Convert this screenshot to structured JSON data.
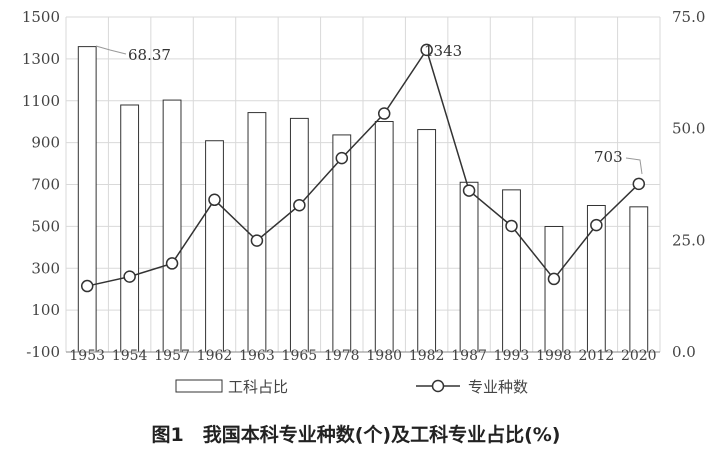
{
  "chart_data": {
    "type": "bar+line",
    "title": "图1　我国本科专业种数(个)及工科专业占比(%)",
    "categories": [
      "1953",
      "1954",
      "1957",
      "1962",
      "1963",
      "1965",
      "1978",
      "1980",
      "1982",
      "1987",
      "1993",
      "1998",
      "2012",
      "2020"
    ],
    "series": [
      {
        "name": "工科占比",
        "type": "bar",
        "axis": "right",
        "values": [
          68.37,
          55.3,
          56.4,
          47.3,
          53.6,
          52.3,
          48.6,
          51.6,
          49.8,
          38.0,
          36.3,
          28.1,
          32.8,
          32.5
        ]
      },
      {
        "name": "专业种数",
        "type": "line",
        "axis": "left",
        "values": [
          215,
          260,
          323,
          627,
          432,
          601,
          826,
          1039,
          1343,
          671,
          502,
          249,
          506,
          703
        ]
      }
    ],
    "yleft": {
      "min": -100,
      "max": 1500,
      "ticks": [
        "1500",
        "1300",
        "1100",
        "900",
        "700",
        "500",
        "300",
        "100",
        "-100"
      ]
    },
    "yright": {
      "min": 0,
      "max": 75,
      "ticks": [
        "75.0",
        "50.0",
        "25.0",
        "0.0"
      ]
    },
    "annotations": {
      "first_bar": "68.37",
      "peak_line": "1343",
      "last_line": "703"
    },
    "legend": {
      "bar_label": "工科占比",
      "line_label": "专业种数",
      "placement": "bottom"
    },
    "grid": true,
    "colors": {
      "bar_fill": "#ffffff",
      "bar_stroke": "#333333",
      "line": "#333333",
      "grid": "#d9d9d9"
    }
  }
}
